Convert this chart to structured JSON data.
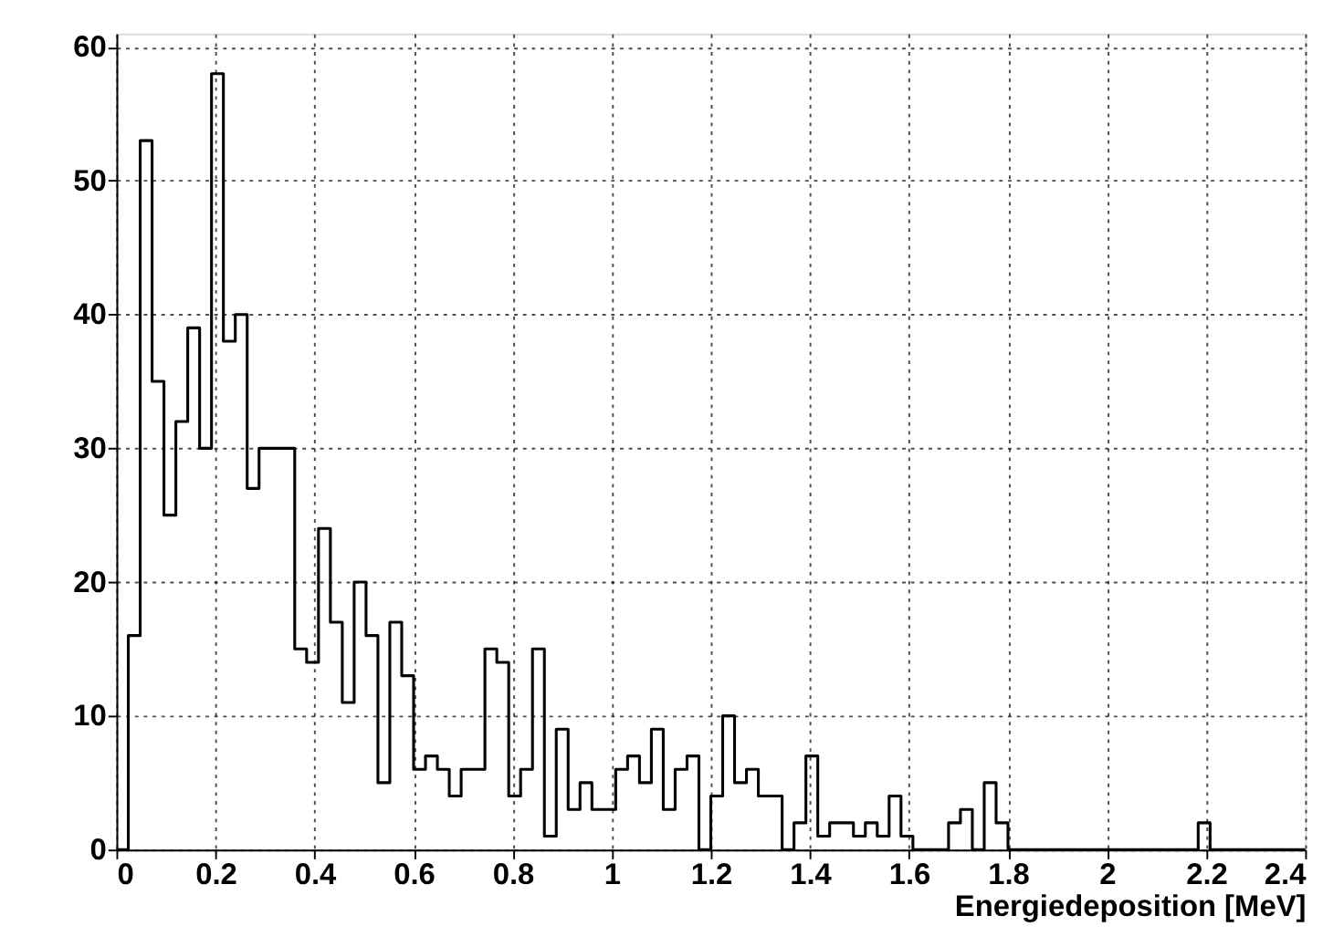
{
  "chart_data": {
    "type": "histogram",
    "xlabel": "Energiedeposition [MeV]",
    "color": "#000000",
    "bins": [
      0,
      0.024,
      0.048,
      0.072,
      0.096,
      0.12,
      0.144,
      0.168,
      0.192,
      0.216,
      0.24,
      0.264,
      0.288,
      0.312,
      0.336,
      0.36,
      0.384,
      0.408,
      0.432,
      0.456,
      0.48,
      0.504,
      0.528,
      0.552,
      0.576,
      0.6,
      0.624,
      0.648,
      0.672,
      0.696,
      0.72,
      0.744,
      0.768,
      0.792,
      0.816,
      0.84,
      0.864,
      0.888,
      0.912,
      0.936,
      0.96,
      0.984,
      1.008,
      1.032,
      1.056,
      1.08,
      1.104,
      1.128,
      1.152,
      1.176,
      1.2,
      1.224,
      1.248,
      1.272,
      1.296,
      1.32,
      1.344,
      1.368,
      1.392,
      1.416,
      1.44,
      1.464,
      1.488,
      1.512,
      1.536,
      1.56,
      1.584,
      1.608,
      1.632,
      1.656,
      1.68,
      1.704,
      1.728,
      1.752,
      1.776,
      1.8,
      1.824,
      1.848,
      1.872,
      1.896,
      1.92,
      1.944,
      1.968,
      1.992,
      2.016,
      2.04,
      2.064,
      2.088,
      2.112,
      2.136,
      2.16,
      2.184,
      2.208,
      2.232,
      2.256,
      2.28,
      2.304,
      2.328,
      2.352,
      2.376,
      2.4
    ],
    "values": [
      0,
      16,
      53,
      35,
      25,
      32,
      39,
      30,
      58,
      38,
      40,
      27,
      30,
      30,
      30,
      15,
      14,
      24,
      17,
      11,
      20,
      16,
      5,
      17,
      13,
      6,
      7,
      6,
      4,
      6,
      6,
      15,
      14,
      4,
      6,
      15,
      1,
      9,
      3,
      5,
      3,
      3,
      6,
      7,
      5,
      9,
      3,
      6,
      7,
      0,
      4,
      10,
      5,
      6,
      4,
      4,
      0,
      2,
      7,
      1,
      2,
      2,
      1,
      2,
      1,
      4,
      1,
      0,
      0,
      0,
      2,
      3,
      0,
      5,
      2,
      0,
      0,
      0,
      0,
      0,
      0,
      0,
      0,
      0,
      0,
      0,
      0,
      0,
      0,
      0,
      0,
      2,
      0,
      0,
      0,
      0,
      0,
      0,
      0,
      0
    ],
    "xlim": [
      0,
      2.4
    ],
    "xticks": [
      0,
      0.2,
      0.4,
      0.6,
      0.8,
      1,
      1.2,
      1.4,
      1.6,
      1.8,
      2,
      2.2,
      2.4
    ],
    "ylim": [
      0,
      61
    ],
    "yticks": [
      0,
      10,
      20,
      30,
      40,
      50,
      60
    ],
    "grid": true
  }
}
